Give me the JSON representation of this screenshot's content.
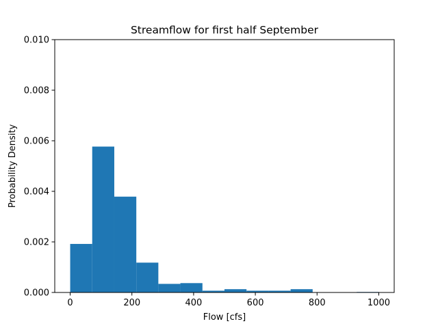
{
  "chart_data": {
    "type": "bar",
    "title": "Streamflow for first half September",
    "xlabel": "Flow [cfs]",
    "ylabel": "Probability Density",
    "xlim": [
      -50,
      1050
    ],
    "ylim": [
      0,
      0.01
    ],
    "grid": false,
    "bar_color": "#1f77b4",
    "x_ticks": [
      0,
      200,
      400,
      600,
      800,
      1000
    ],
    "y_ticks": [
      0.0,
      0.002,
      0.004,
      0.006,
      0.008,
      0.01
    ],
    "x_tick_labels": [
      "0",
      "200",
      "400",
      "600",
      "800",
      "1000"
    ],
    "y_tick_labels": [
      "0.000",
      "0.002",
      "0.004",
      "0.006",
      "0.008",
      "0.010"
    ],
    "bin_edges": [
      0,
      71.4,
      142.9,
      214.3,
      285.7,
      357.1,
      428.6,
      500.0,
      571.4,
      642.9,
      714.3,
      785.7,
      857.1,
      928.6,
      1000
    ],
    "values": [
      0.00192,
      0.00577,
      0.00379,
      0.00118,
      0.00034,
      0.00037,
      7e-05,
      0.00013,
      7e-05,
      7e-05,
      0.00013,
      0.0,
      0.0,
      2e-05
    ]
  }
}
